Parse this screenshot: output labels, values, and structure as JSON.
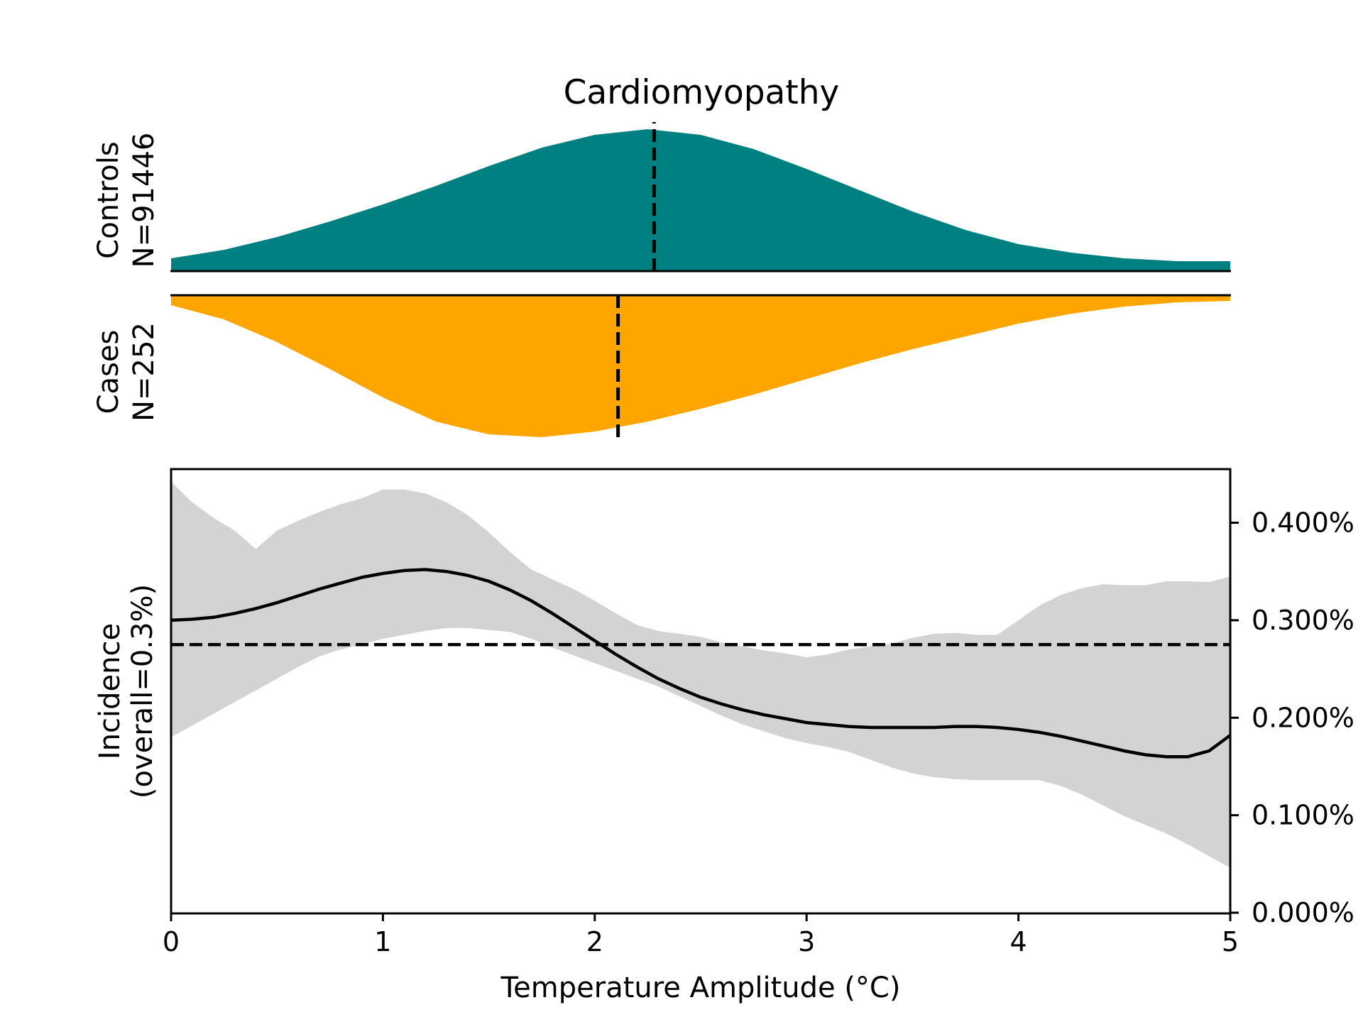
{
  "chart_data": {
    "type": "area",
    "title": "Cardiomyopathy",
    "xlabel": "Temperature Amplitude (°C)",
    "xlim": [
      0,
      5
    ],
    "x_ticks": [
      "0",
      "1",
      "2",
      "3",
      "4",
      "5"
    ],
    "colors": {
      "controls": "#008080",
      "cases": "#FFA500",
      "ci_band": "#D3D3D3",
      "line": "#000000"
    },
    "distributions": {
      "controls": {
        "label_line1": "Controls",
        "label_line2": "N=91446",
        "median": 2.28,
        "x": [
          0,
          0.25,
          0.5,
          0.75,
          1.0,
          1.25,
          1.5,
          1.75,
          2.0,
          2.25,
          2.5,
          2.75,
          3.0,
          3.25,
          3.5,
          3.75,
          4.0,
          4.25,
          4.5,
          4.75,
          5.0
        ],
        "density": [
          0.09,
          0.15,
          0.24,
          0.35,
          0.47,
          0.6,
          0.74,
          0.87,
          0.96,
          1.0,
          0.96,
          0.86,
          0.72,
          0.57,
          0.42,
          0.29,
          0.19,
          0.13,
          0.09,
          0.07,
          0.07
        ]
      },
      "cases": {
        "label_line1": "Cases",
        "label_line2": "N=252",
        "median": 2.11,
        "x": [
          0,
          0.25,
          0.5,
          0.75,
          1.0,
          1.25,
          1.5,
          1.75,
          2.0,
          2.25,
          2.5,
          2.75,
          3.0,
          3.25,
          3.5,
          3.75,
          4.0,
          4.25,
          4.5,
          4.75,
          5.0
        ],
        "density": [
          0.07,
          0.17,
          0.33,
          0.52,
          0.72,
          0.89,
          0.98,
          1.0,
          0.96,
          0.89,
          0.8,
          0.7,
          0.59,
          0.48,
          0.38,
          0.29,
          0.2,
          0.13,
          0.08,
          0.05,
          0.04
        ]
      }
    },
    "incidence": {
      "ylabel_line1": "Incidence",
      "ylabel_line2": "(overall=0.3%)",
      "ylim": [
        0,
        0.00455
      ],
      "y_ticks": [
        {
          "value": 0.0,
          "label": "0.000%"
        },
        {
          "value": 0.001,
          "label": "0.100%"
        },
        {
          "value": 0.002,
          "label": "0.200%"
        },
        {
          "value": 0.003,
          "label": "0.300%"
        },
        {
          "value": 0.004,
          "label": "0.400%"
        }
      ],
      "overall": 0.00275,
      "x": [
        0,
        0.1,
        0.2,
        0.3,
        0.4,
        0.5,
        0.6,
        0.7,
        0.8,
        0.9,
        1.0,
        1.1,
        1.2,
        1.3,
        1.4,
        1.5,
        1.6,
        1.7,
        1.8,
        1.9,
        2.0,
        2.1,
        2.2,
        2.3,
        2.4,
        2.5,
        2.6,
        2.7,
        2.8,
        2.9,
        3.0,
        3.1,
        3.2,
        3.3,
        3.4,
        3.5,
        3.6,
        3.7,
        3.8,
        3.9,
        4.0,
        4.1,
        4.2,
        4.3,
        4.4,
        4.5,
        4.6,
        4.7,
        4.8,
        4.9,
        5.0
      ],
      "y": [
        0.003,
        0.00301,
        0.00303,
        0.00307,
        0.00312,
        0.00318,
        0.00325,
        0.00332,
        0.00338,
        0.00344,
        0.00348,
        0.00351,
        0.00352,
        0.0035,
        0.00346,
        0.0034,
        0.00331,
        0.0032,
        0.00307,
        0.00293,
        0.00279,
        0.00265,
        0.00252,
        0.0024,
        0.0023,
        0.00221,
        0.00214,
        0.00208,
        0.00203,
        0.00199,
        0.00195,
        0.00193,
        0.00191,
        0.0019,
        0.0019,
        0.0019,
        0.0019,
        0.00191,
        0.00191,
        0.0019,
        0.00188,
        0.00185,
        0.00181,
        0.00176,
        0.00171,
        0.00166,
        0.00162,
        0.0016,
        0.0016,
        0.00166,
        0.00182
      ],
      "upper": [
        0.00442,
        0.00421,
        0.00405,
        0.00392,
        0.00373,
        0.00392,
        0.00402,
        0.00411,
        0.00419,
        0.00425,
        0.00434,
        0.00434,
        0.0043,
        0.00421,
        0.00408,
        0.0039,
        0.0037,
        0.00352,
        0.00342,
        0.00332,
        0.0032,
        0.00307,
        0.00295,
        0.00289,
        0.00286,
        0.00283,
        0.00277,
        0.00273,
        0.00269,
        0.00266,
        0.00262,
        0.00265,
        0.0027,
        0.00273,
        0.00276,
        0.00282,
        0.00286,
        0.00287,
        0.00285,
        0.00285,
        0.003,
        0.00315,
        0.00326,
        0.00333,
        0.00337,
        0.00336,
        0.00336,
        0.0034,
        0.0034,
        0.00339,
        0.00345
      ],
      "lower": [
        0.0018,
        0.00192,
        0.00204,
        0.00216,
        0.00228,
        0.0024,
        0.00252,
        0.00263,
        0.0027,
        0.00275,
        0.00281,
        0.00285,
        0.00289,
        0.00292,
        0.00292,
        0.0029,
        0.00288,
        0.00281,
        0.00272,
        0.00264,
        0.00256,
        0.00248,
        0.0024,
        0.00232,
        0.00222,
        0.00212,
        0.00202,
        0.00193,
        0.00186,
        0.00179,
        0.00174,
        0.0017,
        0.00165,
        0.00157,
        0.00149,
        0.00143,
        0.00139,
        0.00137,
        0.00136,
        0.00136,
        0.00136,
        0.00136,
        0.0013,
        0.00121,
        0.0011,
        0.00099,
        0.0009,
        0.00081,
        0.0007,
        0.00058,
        0.00046
      ]
    }
  }
}
